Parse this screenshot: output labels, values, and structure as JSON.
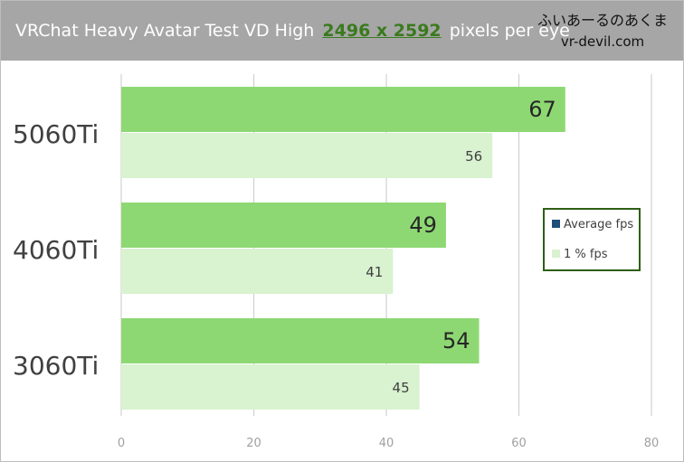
{
  "header": {
    "title_prefix": "VRChat Heavy Avatar Test  VD High",
    "resolution": "2496 x 2592",
    "title_suffix": "pixels per eye",
    "brand_logo": "ふいあーるのあくま",
    "brand_site": "vr-devil.com"
  },
  "colors": {
    "average_bar": "#8ed873",
    "low_bar": "#d9f2d0",
    "gridline": "#d0d0d0",
    "axis_text": "#a0a0a0",
    "legend_average_swatch": "#1f4e79",
    "legend_low_swatch": "#d9f2d0"
  },
  "legend": {
    "average_label": "Average fps",
    "low_label": "1 % fps"
  },
  "chart_data": {
    "type": "bar",
    "orientation": "horizontal",
    "categories": [
      "5060Ti",
      "4060Ti",
      "3060Ti"
    ],
    "series": [
      {
        "name": "Average fps",
        "values": [
          67,
          49,
          54
        ]
      },
      {
        "name": "1 % fps",
        "values": [
          56,
          41,
          45
        ]
      }
    ],
    "xlim": [
      0,
      80
    ],
    "xticks": [
      0,
      20,
      40,
      60,
      80
    ],
    "grid": true,
    "legend_position": "right"
  }
}
